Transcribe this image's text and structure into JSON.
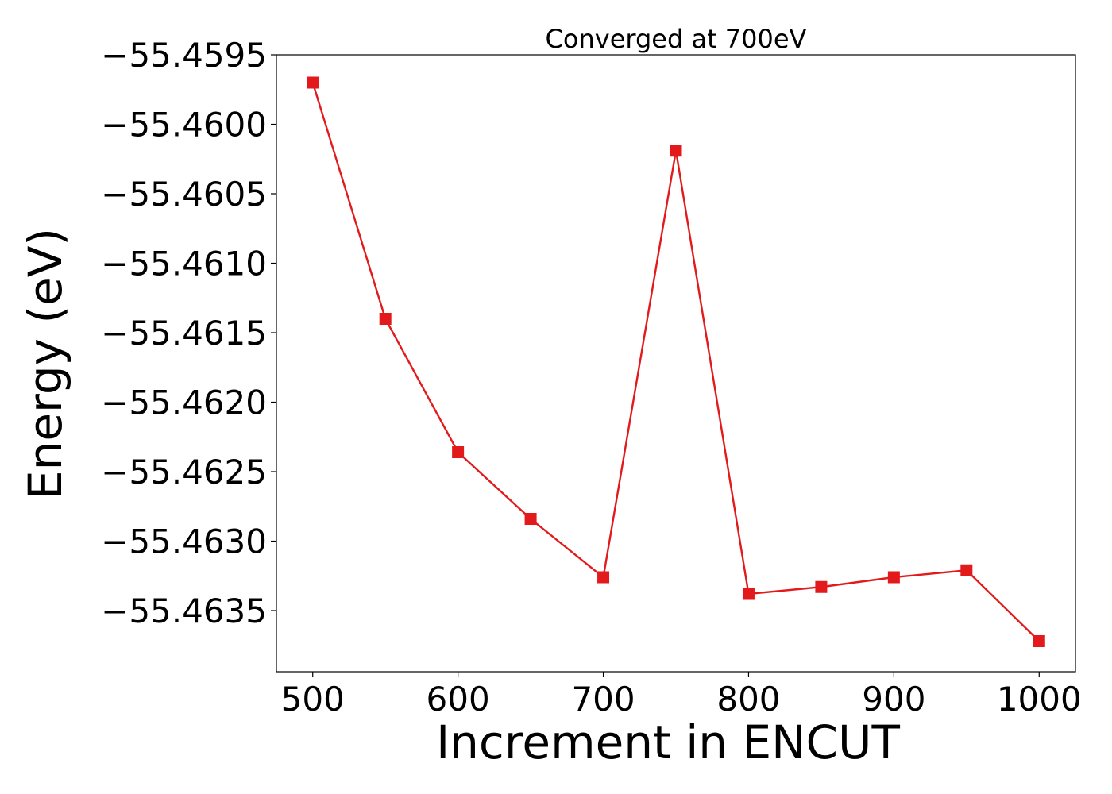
{
  "chart_data": {
    "type": "line",
    "title": "Converged at 700eV",
    "xlabel": "Increment in ENCUT",
    "ylabel": "Energy (eV)",
    "x": [
      500,
      550,
      600,
      650,
      700,
      750,
      800,
      850,
      900,
      950,
      1000
    ],
    "series": [
      {
        "values": [
          -55.4597,
          -55.4614,
          -55.46236,
          -55.46284,
          -55.46326,
          -55.46019,
          -55.46338,
          -55.46333,
          -55.46326,
          -55.46321,
          -55.46372
        ]
      }
    ],
    "xlim": [
      475,
      1025
    ],
    "ylim": [
      -55.46394,
      -55.4595
    ],
    "x_ticks": [
      500,
      600,
      700,
      800,
      900,
      1000
    ],
    "x_tick_labels": [
      "500",
      "600",
      "700",
      "800",
      "900",
      "1000"
    ],
    "y_ticks": [
      -55.4595,
      -55.46,
      -55.4605,
      -55.461,
      -55.4615,
      -55.462,
      -55.4625,
      -55.463,
      -55.4635
    ],
    "y_tick_labels": [
      "−55.4595",
      "−55.4600",
      "−55.4605",
      "−55.4610",
      "−55.4615",
      "−55.4620",
      "−55.4625",
      "−55.4630",
      "−55.4635"
    ],
    "grid": false,
    "marker": "square",
    "line_color": "#e31a1c"
  }
}
